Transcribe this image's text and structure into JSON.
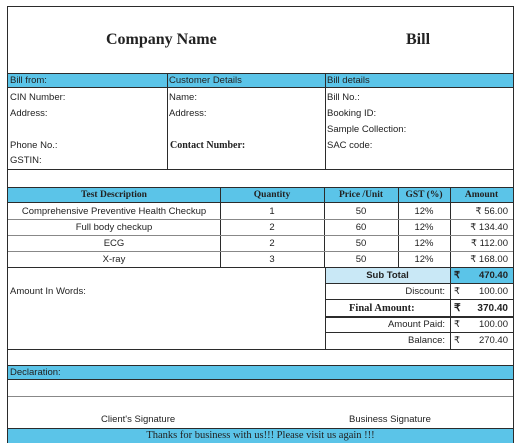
{
  "header": {
    "company_name": "Company Name",
    "bill_title": "Bill"
  },
  "parties": {
    "bill_from": {
      "heading": "Bill from:",
      "cin_label": "CIN Number:",
      "address_label": "Address:",
      "phone_label": "Phone No.:",
      "gstin_label": "GSTIN:"
    },
    "customer": {
      "heading": "Customer Details",
      "name_label": "Name:",
      "address_label": "Address:",
      "contact_label": "Contact Number:"
    },
    "bill_details": {
      "heading": "Bill details",
      "bill_no_label": "Bill No.:",
      "booking_id_label": "Booking ID:",
      "sample_collection_label": "Sample Collection:",
      "sac_code_label": "SAC code:"
    }
  },
  "items": {
    "columns": [
      "Test Description",
      "Quantity",
      "Price /Unit",
      "GST (%)",
      "Amount"
    ],
    "rows": [
      {
        "description": "Comprehensive Preventive Health Checkup",
        "quantity": "1",
        "price": "50",
        "gst": "12%",
        "amount": "₹ 56.00"
      },
      {
        "description": "Full body checkup",
        "quantity": "2",
        "price": "60",
        "gst": "12%",
        "amount": "₹ 134.40"
      },
      {
        "description": "ECG",
        "quantity": "2",
        "price": "50",
        "gst": "12%",
        "amount": "₹ 112.00"
      },
      {
        "description": "X-ray",
        "quantity": "3",
        "price": "50",
        "gst": "12%",
        "amount": "₹ 168.00"
      }
    ]
  },
  "summary": {
    "amount_in_words_label": "Amount In Words:",
    "currency": "₹",
    "subtotal": {
      "label": "Sub Total",
      "value": "470.40"
    },
    "discount": {
      "label": "Discount:",
      "value": "100.00"
    },
    "final_amount": {
      "label": "Final Amount:",
      "value": "370.40"
    },
    "amount_paid": {
      "label": "Amount Paid:",
      "value": "100.00"
    },
    "balance": {
      "label": "Balance:",
      "value": "270.40"
    }
  },
  "footer": {
    "declaration_label": "Declaration:",
    "client_signature": "Client's Signature",
    "business_signature": "Business Signature",
    "thanks_message": "Thanks for business with us!!! Please visit us again !!!"
  }
}
